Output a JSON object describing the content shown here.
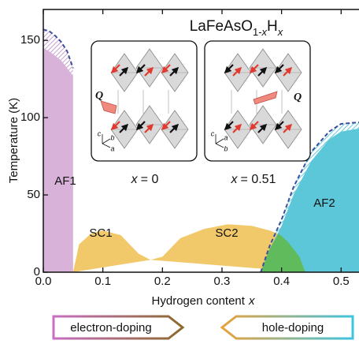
{
  "chart_data": {
    "type": "phase-diagram",
    "title": [
      {
        "text": "LaFeAsO"
      },
      {
        "text": "1-",
        "sub": true
      },
      {
        "text": "x",
        "sub": true,
        "italic": true
      },
      {
        "text": "H"
      },
      {
        "text": "x",
        "sub": true,
        "italic": true
      }
    ],
    "xlabel": {
      "text": "Hydrogen content",
      "var": "x"
    },
    "ylabel": "Temperature (K)",
    "xlim": [
      0,
      0.53
    ],
    "ylim": [
      0,
      170
    ],
    "xticks": [
      {
        "value": 0,
        "label": "0.0"
      },
      0.1,
      0.2,
      0.3,
      0.4,
      0.5
    ],
    "yticks": [
      0,
      50,
      100,
      150
    ],
    "regions": [
      {
        "name": "SC1",
        "color": "#f2c96a",
        "x": [
          0.05,
          0.06,
          0.08,
          0.1,
          0.13,
          0.16,
          0.18
        ],
        "y": [
          0,
          18,
          25,
          27,
          24,
          12,
          8
        ]
      },
      {
        "name": "SC2",
        "color": "#f2c96a",
        "x": [
          0.18,
          0.2,
          0.23,
          0.27,
          0.31,
          0.35,
          0.38,
          0.4,
          0.42,
          0.44
        ],
        "y": [
          8,
          10,
          22,
          28,
          31,
          30,
          27,
          24,
          14,
          0
        ]
      },
      {
        "name": "AF1",
        "color": "#d9b2da",
        "x": [
          0,
          0,
          0.01,
          0.03,
          0.05,
          0.05
        ],
        "y": [
          0,
          145,
          143,
          137,
          127,
          0
        ]
      },
      {
        "name": "AF2",
        "color": "#5cc7d9",
        "x": [
          0.365,
          0.38,
          0.4,
          0.42,
          0.45,
          0.48,
          0.5,
          0.53,
          0.53
        ],
        "y": [
          0,
          15,
          30,
          50,
          72,
          86,
          91,
          93,
          0
        ]
      }
    ],
    "overlap": {
      "color": "#5fbb5c",
      "x": [
        0.365,
        0.38,
        0.395,
        0.41,
        0.43,
        0.44
      ],
      "y": [
        0,
        15,
        25,
        20,
        10,
        0
      ]
    },
    "boundaries": [
      {
        "region": 2,
        "color": "#3a4fa0",
        "x": [
          0,
          0.01,
          0.02,
          0.03,
          0.04,
          0.05
        ],
        "y": [
          157,
          156,
          153,
          149,
          143,
          132
        ]
      },
      {
        "region": 3,
        "color": "#3a4fa0",
        "x": [
          0.365,
          0.38,
          0.4,
          0.42,
          0.45,
          0.48,
          0.5,
          0.53
        ],
        "y": [
          0,
          17,
          34,
          55,
          78,
          91,
          96,
          97
        ]
      }
    ],
    "insets": [
      {
        "var": "x",
        "text": "= 0",
        "vector": "Q",
        "axes": [
          "c",
          "b",
          "a"
        ]
      },
      {
        "var": "x",
        "text": "= 0.51",
        "vector": "Q",
        "axes": [
          "c",
          "a",
          "b"
        ]
      }
    ],
    "doping_arrows": [
      "electron-doping",
      "hole-doping"
    ]
  }
}
